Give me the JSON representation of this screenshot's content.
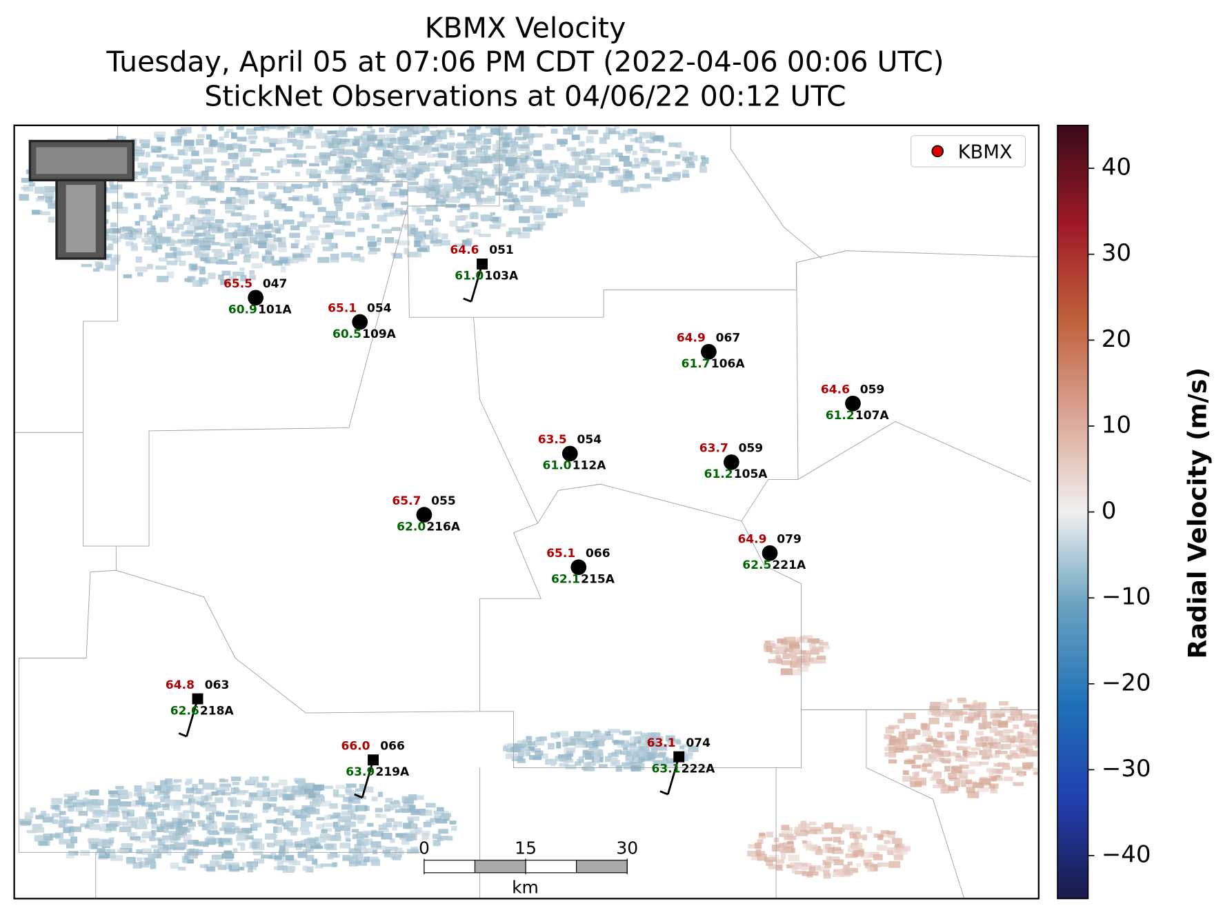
{
  "title": [
    "KBMX Velocity",
    "Tuesday, April 05 at 07:06 PM CDT (2022-04-06 00:06 UTC)",
    "StickNet Observations at 04/06/22 00:12 UTC"
  ],
  "legend": {
    "label": "KBMX",
    "color": "#e00000"
  },
  "colorbar": {
    "label": "Radial Velocity (m/s)",
    "lim": [
      -45,
      45
    ],
    "ticks": [
      {
        "value": 40,
        "label": "40"
      },
      {
        "value": 30,
        "label": "30"
      },
      {
        "value": 20,
        "label": "20"
      },
      {
        "value": 10,
        "label": "10"
      },
      {
        "value": 0,
        "label": "0"
      },
      {
        "value": -10,
        "label": "−10"
      },
      {
        "value": -20,
        "label": "−20"
      },
      {
        "value": -30,
        "label": "−30"
      },
      {
        "value": -40,
        "label": "−40"
      }
    ]
  },
  "scalebar": {
    "ticks": [
      0,
      15,
      30
    ],
    "unit": "km"
  },
  "stations": [
    {
      "id": "101A",
      "temp": "65.5",
      "dewpoint": "60.9",
      "wind_dir": "047"
    },
    {
      "id": "109A",
      "temp": "65.1",
      "dewpoint": "60.5",
      "wind_dir": "054"
    },
    {
      "id": "103A",
      "temp": "64.6",
      "dewpoint": "61.0",
      "wind_dir": "051"
    },
    {
      "id": "106A",
      "temp": "64.9",
      "dewpoint": "61.7",
      "wind_dir": "067"
    },
    {
      "id": "107A",
      "temp": "64.6",
      "dewpoint": "61.2",
      "wind_dir": "059"
    },
    {
      "id": "112A",
      "temp": "63.5",
      "dewpoint": "61.0",
      "wind_dir": "054"
    },
    {
      "id": "105A",
      "temp": "63.7",
      "dewpoint": "61.2",
      "wind_dir": "059"
    },
    {
      "id": "216A",
      "temp": "65.7",
      "dewpoint": "62.0",
      "wind_dir": "055"
    },
    {
      "id": "215A",
      "temp": "65.1",
      "dewpoint": "62.1",
      "wind_dir": "066"
    },
    {
      "id": "221A",
      "temp": "64.9",
      "dewpoint": "62.5",
      "wind_dir": "079"
    },
    {
      "id": "218A",
      "temp": "64.8",
      "dewpoint": "62.6",
      "wind_dir": "063"
    },
    {
      "id": "219A",
      "temp": "66.0",
      "dewpoint": "63.9",
      "wind_dir": "066"
    },
    {
      "id": "222A",
      "temp": "63.1",
      "dewpoint": "63.1",
      "wind_dir": "074"
    }
  ]
}
